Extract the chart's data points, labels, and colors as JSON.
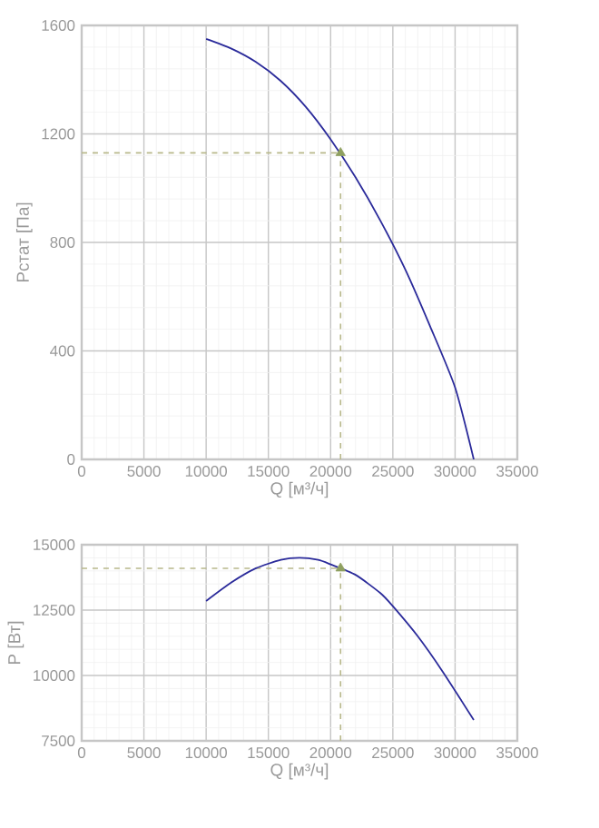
{
  "chart_data": [
    {
      "type": "line",
      "xlabel": "Q [м³/ч]",
      "ylabel": "Рстат [Па]",
      "xlim": [
        0,
        35000
      ],
      "ylim": [
        0,
        1600
      ],
      "xticks": [
        0,
        5000,
        10000,
        15000,
        20000,
        25000,
        30000,
        35000
      ],
      "yticks": [
        0,
        400,
        800,
        1200,
        1600
      ],
      "grid": true,
      "series": [
        {
          "color": "#2a2a9a",
          "x": [
            10000,
            12000,
            14000,
            16000,
            18000,
            20000,
            22000,
            24000,
            26000,
            28000,
            30000,
            31500
          ],
          "values": [
            1550,
            1515,
            1465,
            1395,
            1300,
            1180,
            1040,
            880,
            700,
            490,
            265,
            0
          ]
        },
        {
          "type": "scatter",
          "marker": "triangle",
          "color": "#8fa060",
          "x": [
            20800
          ],
          "values": [
            1130
          ]
        }
      ],
      "ref_lines": [
        {
          "axis": "x",
          "value": 20800,
          "color": "#b8b88a",
          "line_style": "dashed"
        },
        {
          "axis": "y",
          "value": 1130,
          "color": "#b8b88a",
          "line_style": "dashed"
        }
      ]
    },
    {
      "type": "line",
      "xlabel": "Q [м³/ч]",
      "ylabel": "P [Вт]",
      "xlim": [
        0,
        35000
      ],
      "ylim": [
        7500,
        15000
      ],
      "xticks": [
        0,
        5000,
        10000,
        15000,
        20000,
        25000,
        30000,
        35000
      ],
      "yticks": [
        7500,
        10000,
        12500,
        15000
      ],
      "grid": true,
      "series": [
        {
          "color": "#2a2a9a",
          "x": [
            10000,
            12000,
            14000,
            16000,
            17500,
            19000,
            20000,
            22000,
            24000,
            25000,
            27000,
            29000,
            31500
          ],
          "values": [
            12850,
            13550,
            14100,
            14420,
            14500,
            14420,
            14250,
            13850,
            13150,
            12650,
            11500,
            10150,
            8300
          ]
        },
        {
          "type": "scatter",
          "marker": "triangle",
          "color": "#8fa060",
          "x": [
            20800
          ],
          "values": [
            14100
          ]
        }
      ],
      "ref_lines": [
        {
          "axis": "x",
          "value": 20800,
          "color": "#b8b88a",
          "line_style": "dashed"
        },
        {
          "axis": "y",
          "value": 14100,
          "color": "#b8b88a",
          "line_style": "dashed"
        }
      ]
    }
  ]
}
